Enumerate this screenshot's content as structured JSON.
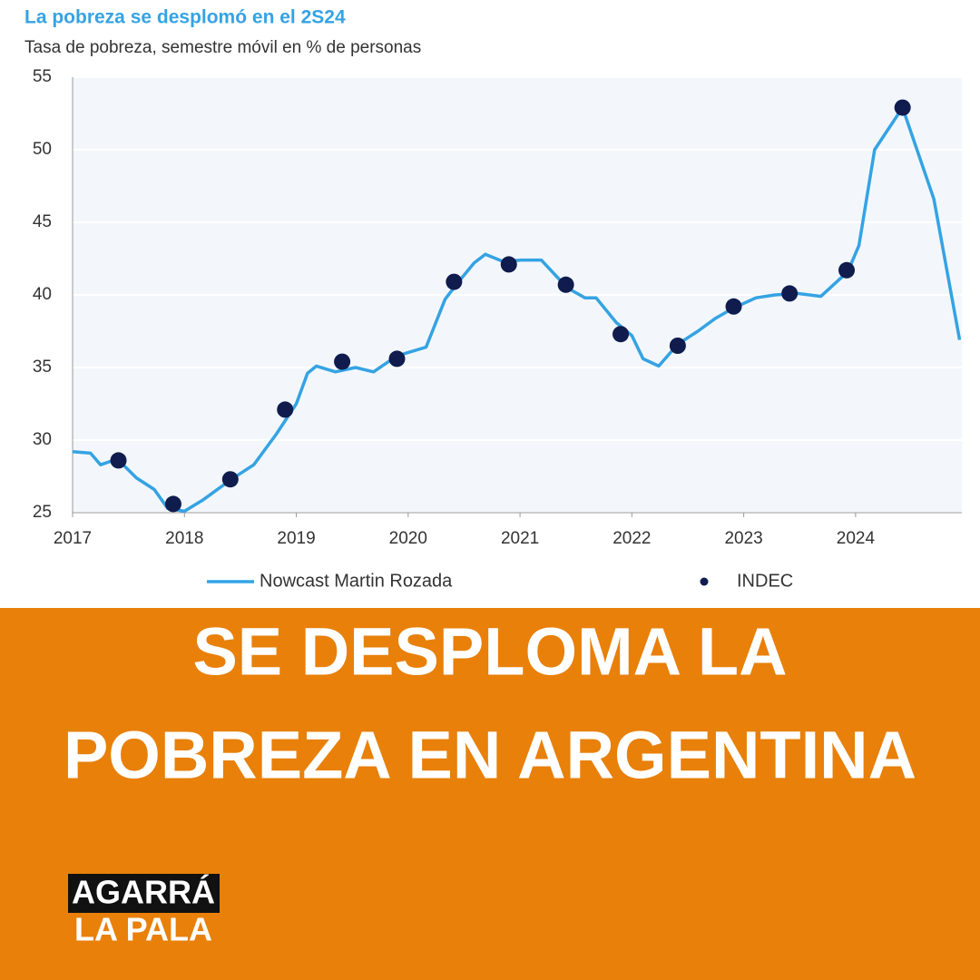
{
  "chart_data": {
    "type": "line",
    "title": "La pobreza se desplomó en el 2S24",
    "subtitle": "Tasa de pobreza, semestre móvil en % de personas",
    "xlim": [
      2017,
      2024.95
    ],
    "xticks": [
      2017,
      2018,
      2019,
      2020,
      2021,
      2022,
      2023,
      2024
    ],
    "ylim": [
      25,
      55
    ],
    "yticks": [
      25,
      30,
      35,
      40,
      45,
      50,
      55
    ],
    "grid": true,
    "series": [
      {
        "name": "Nowcast Martin Rozada",
        "color": "#35a3e3",
        "style": "line",
        "x": [
          2017.0,
          2017.16,
          2017.25,
          2017.4,
          2017.57,
          2017.73,
          2017.85,
          2018.0,
          2018.17,
          2018.42,
          2018.62,
          2018.82,
          2019.0,
          2019.1,
          2019.18,
          2019.35,
          2019.53,
          2019.69,
          2019.9,
          2020.16,
          2020.33,
          2020.45,
          2020.59,
          2020.69,
          2020.85,
          2021.01,
          2021.19,
          2021.42,
          2021.58,
          2021.68,
          2021.86,
          2022.0,
          2022.1,
          2022.24,
          2022.41,
          2022.59,
          2022.75,
          2022.91,
          2023.11,
          2023.28,
          2023.48,
          2023.69,
          2023.93,
          2024.03,
          2024.17,
          2024.42,
          2024.7,
          2024.93
        ],
        "values": [
          29.2,
          29.1,
          28.3,
          28.7,
          27.4,
          26.6,
          25.3,
          25.1,
          25.9,
          27.3,
          28.3,
          30.4,
          32.5,
          34.6,
          35.1,
          34.7,
          35.0,
          34.7,
          35.8,
          36.4,
          39.7,
          40.9,
          42.2,
          42.8,
          42.3,
          42.4,
          42.4,
          40.5,
          39.8,
          39.8,
          38.1,
          37.2,
          35.6,
          35.1,
          36.6,
          37.5,
          38.4,
          39.1,
          39.8,
          40.0,
          40.1,
          39.9,
          41.6,
          43.4,
          50.0,
          52.9,
          46.6,
          36.9
        ]
      },
      {
        "name": "INDEC",
        "color": "#0f1c4d",
        "style": "dots",
        "x": [
          2017.41,
          2017.9,
          2018.41,
          2018.9,
          2019.41,
          2019.9,
          2020.41,
          2020.9,
          2021.41,
          2021.9,
          2022.41,
          2022.91,
          2023.41,
          2023.92,
          2024.42
        ],
        "values": [
          28.6,
          25.6,
          27.3,
          32.1,
          35.4,
          35.6,
          40.9,
          42.1,
          40.7,
          37.3,
          36.5,
          39.2,
          40.1,
          41.7,
          52.9
        ]
      }
    ]
  },
  "banner": {
    "headline": [
      "SE DESPLOMA LA",
      "POBREZA EN ARGENTINA"
    ],
    "logo": [
      "AGARRÁ",
      "LA PALA"
    ]
  }
}
